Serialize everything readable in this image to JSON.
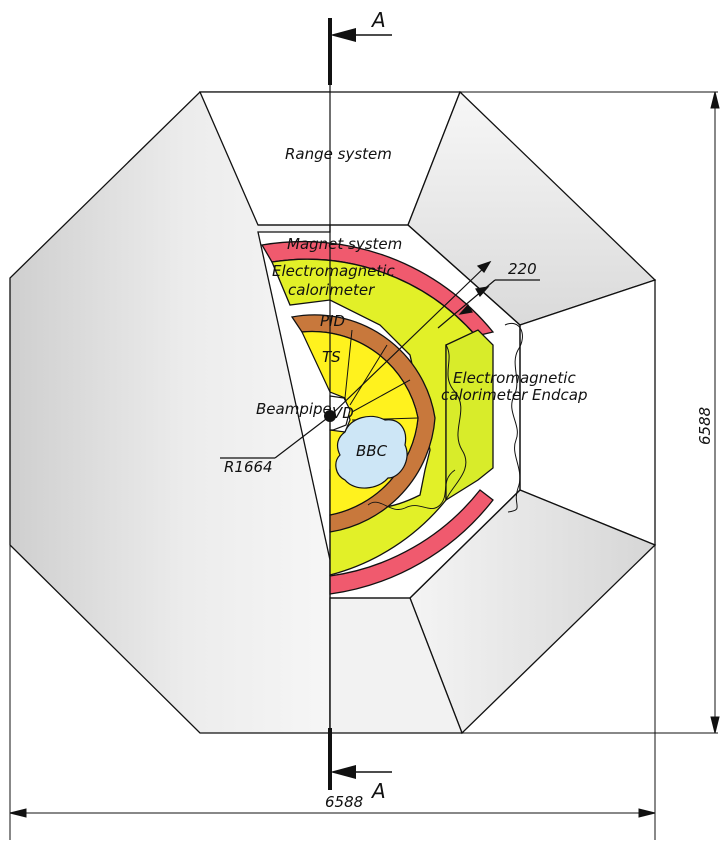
{
  "labels": {
    "range_system": "Range system",
    "magnet_system": "Magnet system",
    "ecal_line1": "Electromagnetic",
    "ecal_line2": "calorimeter",
    "pid": "PID",
    "ts": "TS",
    "beampipe": "Beampipe",
    "vd": "VD",
    "bbc": "BBC",
    "endcap_line1": "Electromagnetic",
    "endcap_line2": "calorimeter Endcap"
  },
  "dimensions": {
    "radius": "R1664",
    "thickness": "220",
    "height": "6588",
    "width": "6588"
  },
  "section": {
    "top_letter": "A",
    "bottom_letter": "A"
  },
  "colors": {
    "magnet": "#f05a6e",
    "ecal": "#e2f028",
    "pid": "#c8783c",
    "ts": "#fff21e",
    "bbc": "#cde6f6",
    "octagon_fill": "#e2e2e2",
    "line": "#111111"
  }
}
